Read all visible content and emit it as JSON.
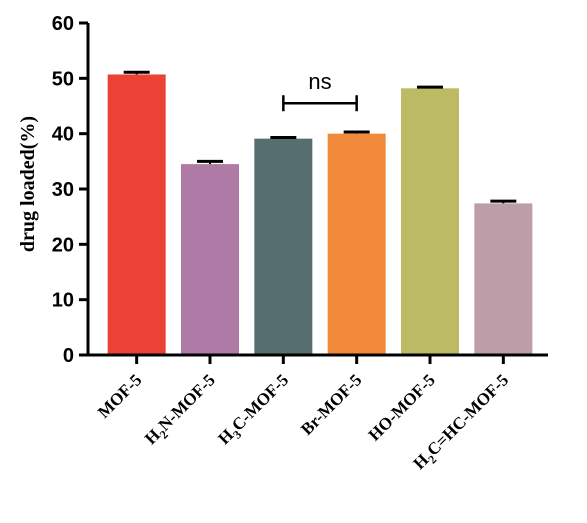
{
  "chart_data": {
    "type": "bar",
    "title": "",
    "xlabel": "",
    "ylabel": "drug loaded(%)",
    "ylim": [
      0,
      60
    ],
    "yticks": [
      "0",
      "10",
      "20",
      "30",
      "40",
      "50",
      "60"
    ],
    "grid": false,
    "legend": "none",
    "categories": [
      {
        "pre": "MOF-5",
        "sub": "",
        "post": ""
      },
      {
        "pre": "H",
        "sub": "2",
        "post": "N-MOF-5"
      },
      {
        "pre": "H",
        "sub": "3",
        "post": "C-MOF-5"
      },
      {
        "pre": "Br-MOF-5",
        "sub": "",
        "post": ""
      },
      {
        "pre": "HO-MOF-5",
        "sub": "",
        "post": ""
      },
      {
        "pre": "H",
        "sub": "2",
        "post": "C=HC-MOF-5"
      }
    ],
    "values": [
      50.7,
      34.5,
      39.1,
      40.0,
      48.2,
      27.4
    ],
    "errors": [
      0.4,
      0.5,
      0.2,
      0.3,
      0.2,
      0.4
    ],
    "colors": [
      "#ea4336",
      "#b07aa6",
      "#566e70",
      "#f18a3a",
      "#bcba63",
      "#bd9ea8"
    ],
    "annotations": [
      {
        "text": "ns",
        "from_index": 2,
        "to_index": 3,
        "at_value": 45.5
      }
    ]
  }
}
